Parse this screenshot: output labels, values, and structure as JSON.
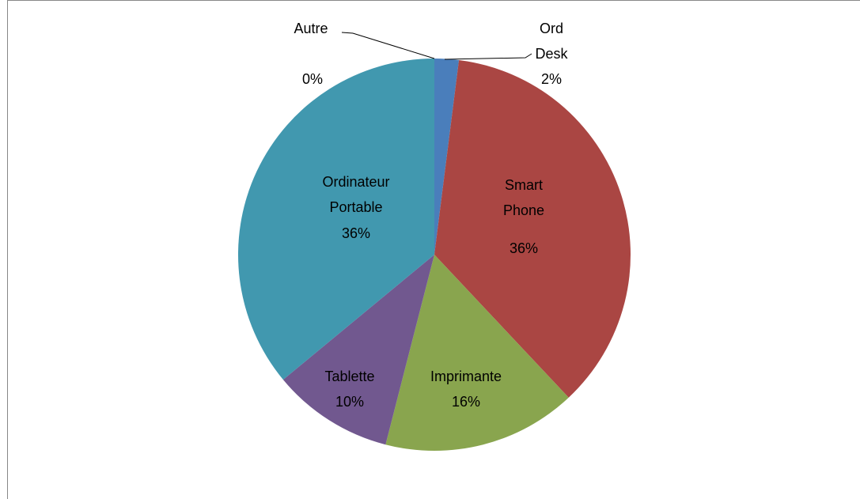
{
  "chart_data": {
    "type": "pie",
    "categories": [
      "Ord Desk",
      "Smart Phone",
      "Imprimante",
      "Tablette",
      "Ordinateur Portable",
      "Autre"
    ],
    "values": [
      2,
      36,
      16,
      10,
      36,
      0
    ],
    "value_labels": [
      "2%",
      "36%",
      "16%",
      "10%",
      "36%",
      "0%"
    ],
    "colors": [
      "#4a7ebb",
      "#aa4643",
      "#89a54e",
      "#71588f",
      "#4198af",
      "#db843d"
    ]
  }
}
